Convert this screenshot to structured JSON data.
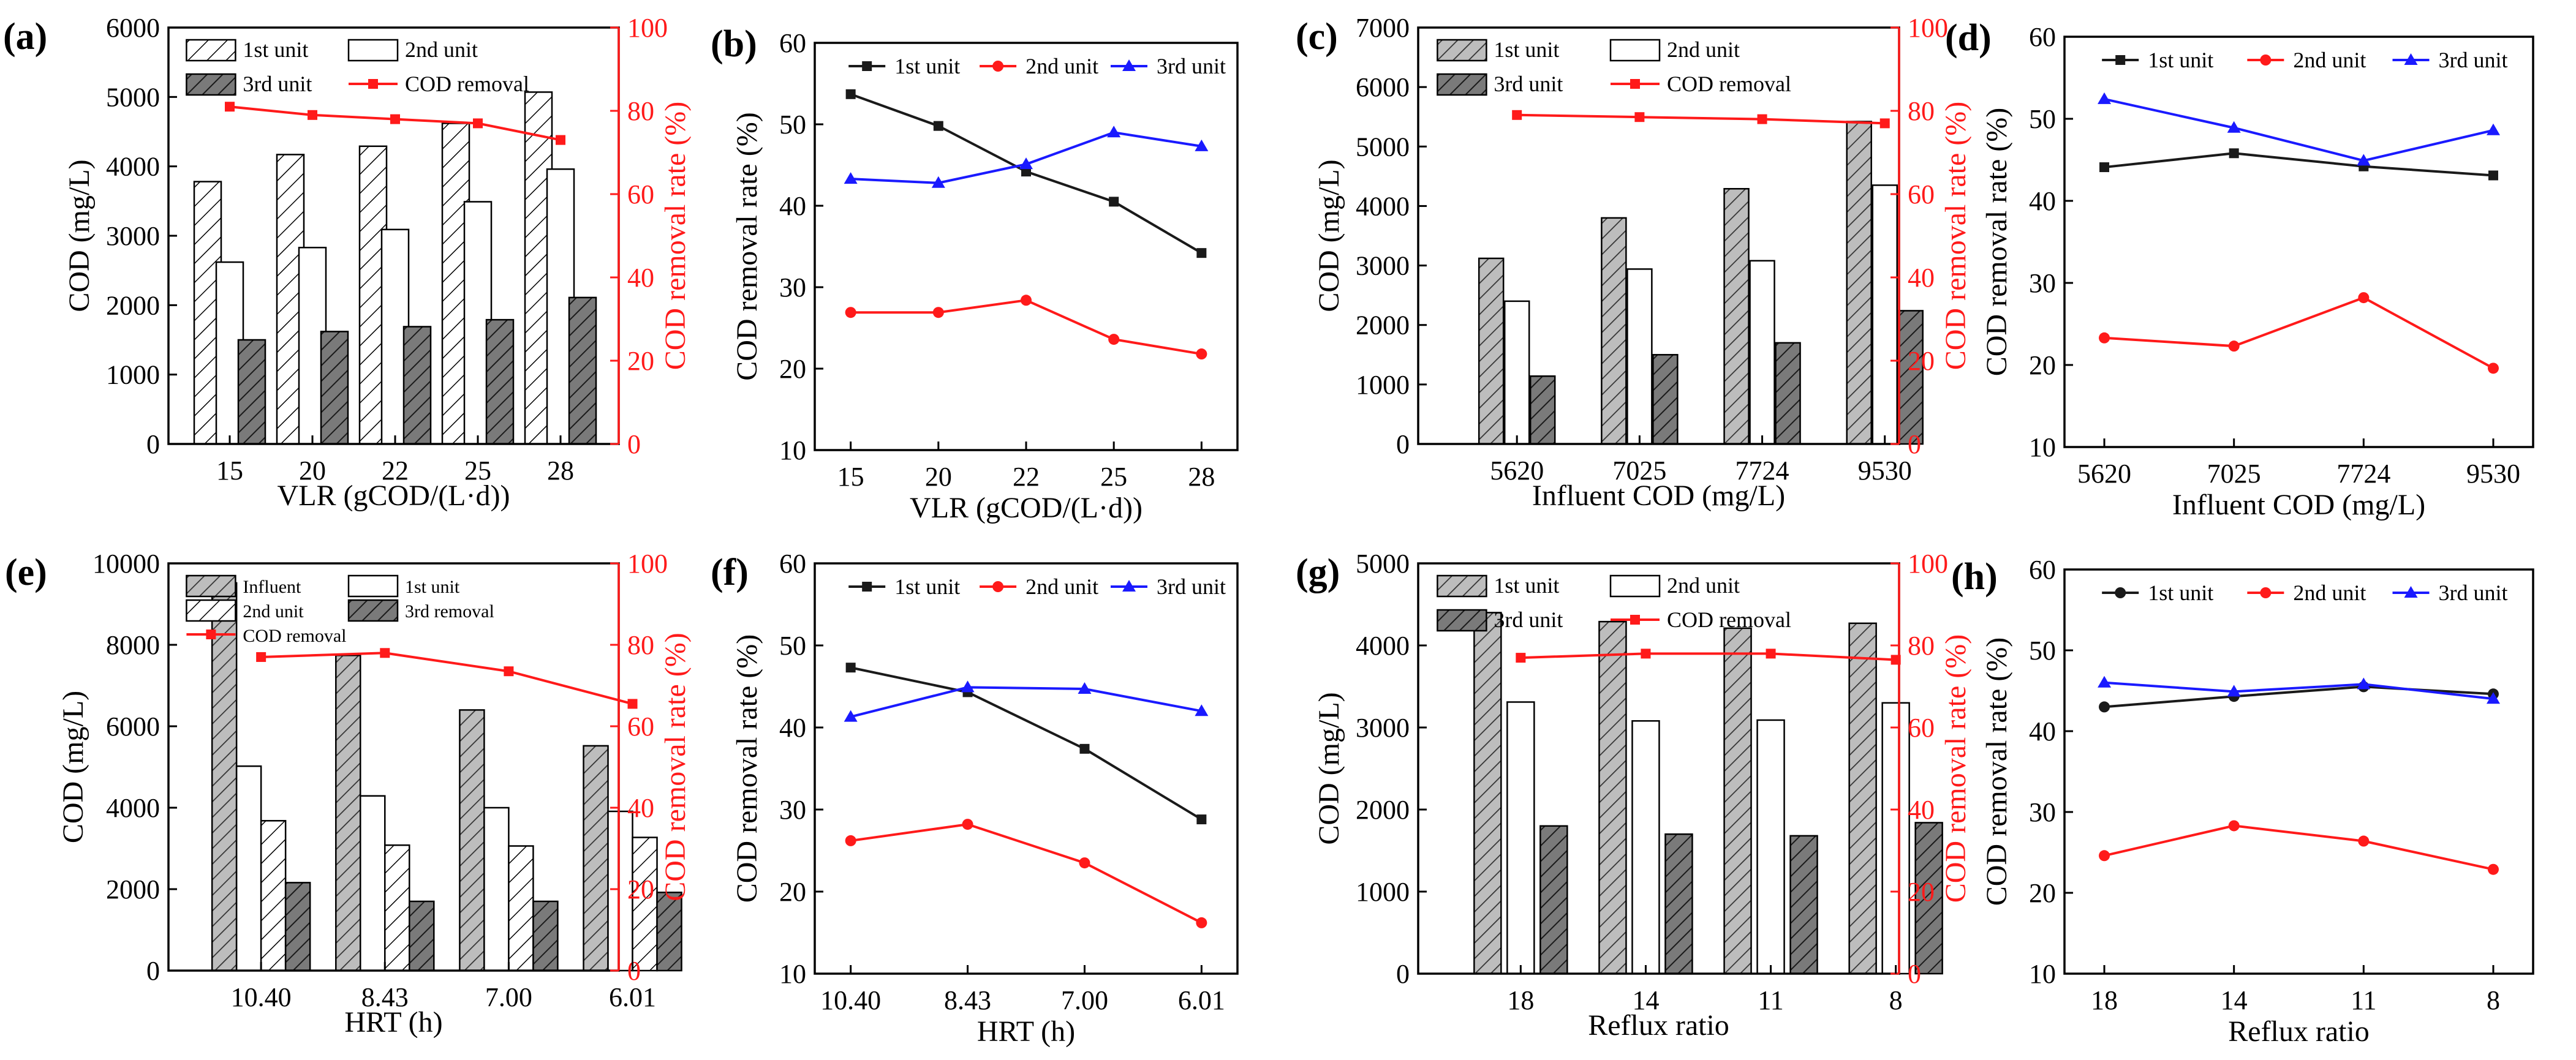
{
  "colors": {
    "black": "#1a1a1a",
    "red": "#ff1a1a",
    "blue": "#1a1aff"
  },
  "chart_data": [
    {
      "panel": "(a)",
      "type": "bar",
      "xlabel": "VLR (gCOD/(L·d))",
      "ylabel": "COD (mg/L)",
      "y2label": "COD removal rate (%)",
      "categories": [
        "15",
        "20",
        "22",
        "25",
        "28"
      ],
      "ylim": [
        0,
        6000
      ],
      "yticks": [
        0,
        1000,
        2000,
        3000,
        4000,
        5000,
        6000
      ],
      "y2lim": [
        0,
        100
      ],
      "y2ticks": [
        0,
        20,
        40,
        60,
        80,
        100
      ],
      "series": [
        {
          "name": "1st unit",
          "style": "hatch-light",
          "values": [
            3780,
            4170,
            4290,
            4620,
            5070
          ]
        },
        {
          "name": "2nd unit",
          "style": "white",
          "values": [
            2620,
            2830,
            3090,
            3490,
            3960
          ]
        },
        {
          "name": "3rd unit",
          "style": "hatch-dark",
          "values": [
            1500,
            1620,
            1690,
            1790,
            2110
          ]
        }
      ],
      "line": {
        "name": "COD removal",
        "values": [
          81,
          79,
          78,
          77,
          73
        ]
      },
      "legend": [
        "1st unit",
        "2nd unit",
        "3rd unit",
        "COD removal"
      ]
    },
    {
      "panel": "(b)",
      "type": "line",
      "xlabel": "VLR (gCOD/(L·d))",
      "ylabel": "COD removal rate (%)",
      "categories": [
        "15",
        "20",
        "22",
        "25",
        "28"
      ],
      "ylim": [
        10,
        60
      ],
      "yticks": [
        10,
        20,
        30,
        40,
        50,
        60
      ],
      "series": [
        {
          "name": "1st unit",
          "color": "black",
          "marker": "square",
          "values": [
            53.7,
            49.8,
            44.2,
            40.5,
            34.2
          ]
        },
        {
          "name": "2nd unit",
          "color": "red",
          "marker": "circle",
          "values": [
            26.9,
            26.9,
            28.4,
            23.6,
            21.8
          ]
        },
        {
          "name": "3rd unit",
          "color": "blue",
          "marker": "triangle",
          "values": [
            43.3,
            42.8,
            45.1,
            49.0,
            47.3
          ]
        }
      ]
    },
    {
      "panel": "(c)",
      "type": "bar",
      "xlabel": "Influent COD (mg/L)",
      "ylabel": "COD (mg/L)",
      "y2label": "COD removal rate (%)",
      "categories": [
        "5620",
        "7025",
        "7724",
        "9530"
      ],
      "ylim": [
        0,
        7000
      ],
      "yticks": [
        0,
        1000,
        2000,
        3000,
        4000,
        5000,
        6000,
        7000
      ],
      "y2lim": [
        0,
        100
      ],
      "y2ticks": [
        0,
        20,
        40,
        60,
        80,
        100
      ],
      "series": [
        {
          "name": "1st unit",
          "style": "hatch-dark",
          "values": [
            3120,
            3800,
            4290,
            5420
          ]
        },
        {
          "name": "2nd unit",
          "style": "white",
          "values": [
            2400,
            2940,
            3080,
            4350
          ]
        },
        {
          "name": "3rd unit",
          "style": "hatch-dark",
          "values": [
            1140,
            1500,
            1700,
            2240
          ]
        }
      ],
      "line": {
        "name": "COD removal",
        "values": [
          79,
          78.5,
          78,
          77
        ]
      },
      "legend": [
        "1st unit",
        "2nd unit",
        "3rd unit",
        "COD removal"
      ]
    },
    {
      "panel": "(d)",
      "type": "line",
      "xlabel": "Influent COD (mg/L)",
      "ylabel": "COD removal rate (%)",
      "categories": [
        "5620",
        "7025",
        "7724",
        "9530"
      ],
      "ylim": [
        10,
        60
      ],
      "yticks": [
        10,
        20,
        30,
        40,
        50,
        60
      ],
      "series": [
        {
          "name": "1st unit",
          "color": "black",
          "marker": "square",
          "values": [
            44.1,
            45.8,
            44.2,
            43.1
          ]
        },
        {
          "name": "2nd unit",
          "color": "red",
          "marker": "circle",
          "values": [
            23.3,
            22.3,
            28.2,
            19.6
          ]
        },
        {
          "name": "3rd unit",
          "color": "blue",
          "marker": "triangle",
          "values": [
            52.4,
            48.9,
            44.9,
            48.6
          ]
        }
      ]
    },
    {
      "panel": "(e)",
      "type": "bar",
      "xlabel": "HRT (h)",
      "ylabel": "COD (mg/L)",
      "y2label": "COD removal rate (%)",
      "categories": [
        "10.40",
        "8.43",
        "7.00",
        "6.01"
      ],
      "ylim": [
        0,
        10000
      ],
      "yticks": [
        0,
        2000,
        4000,
        6000,
        8000,
        10000
      ],
      "y2lim": [
        0,
        100
      ],
      "y2ticks": [
        0,
        20,
        40,
        60,
        80,
        100
      ],
      "series": [
        {
          "name": "Influent",
          "style": "hatch-dark",
          "values": [
            9520,
            7740,
            6400,
            5520
          ]
        },
        {
          "name": "1st unit",
          "style": "white",
          "values": [
            5020,
            4290,
            4000,
            3910
          ]
        },
        {
          "name": "2nd unit",
          "style": "hatch-light",
          "values": [
            3680,
            3080,
            3060,
            3270
          ]
        },
        {
          "name": "3rd removal",
          "style": "hatch-dark",
          "values": [
            2160,
            1700,
            1700,
            1920
          ]
        }
      ],
      "line": {
        "name": "COD removal",
        "values": [
          77,
          78,
          73.5,
          65.5
        ]
      },
      "legend": [
        "Influent",
        "1st unit",
        "2nd unit",
        "3rd removal",
        "COD removal"
      ]
    },
    {
      "panel": "(f)",
      "type": "line",
      "xlabel": "HRT (h)",
      "ylabel": "COD removal rate (%)",
      "categories": [
        "10.40",
        "8.43",
        "7.00",
        "6.01"
      ],
      "ylim": [
        10,
        60
      ],
      "yticks": [
        10,
        20,
        30,
        40,
        50,
        60
      ],
      "series": [
        {
          "name": "1st unit",
          "color": "black",
          "marker": "square",
          "values": [
            47.3,
            44.3,
            37.4,
            28.8
          ]
        },
        {
          "name": "2nd unit",
          "color": "red",
          "marker": "circle",
          "values": [
            26.2,
            28.2,
            23.5,
            16.2
          ]
        },
        {
          "name": "3rd unit",
          "color": "blue",
          "marker": "triangle",
          "values": [
            41.3,
            44.9,
            44.7,
            42.0
          ]
        }
      ]
    },
    {
      "panel": "(g)",
      "type": "bar",
      "xlabel": "Reflux ratio",
      "ylabel": "COD (mg/L)",
      "y2label": "COD removal rate (%)",
      "categories": [
        "18",
        "14",
        "11",
        "8"
      ],
      "ylim": [
        0,
        5000
      ],
      "yticks": [
        0,
        1000,
        2000,
        3000,
        4000,
        5000
      ],
      "y2lim": [
        0,
        100
      ],
      "y2ticks": [
        0,
        20,
        40,
        60,
        80,
        100
      ],
      "series": [
        {
          "name": "1st unit",
          "style": "hatch-dark",
          "values": [
            4400,
            4290,
            4210,
            4270
          ]
        },
        {
          "name": "2nd unit",
          "style": "white",
          "values": [
            3310,
            3080,
            3090,
            3300
          ]
        },
        {
          "name": "3rd unit",
          "style": "hatch-dark",
          "values": [
            1800,
            1700,
            1680,
            1840
          ]
        }
      ],
      "line": {
        "name": "COD removal",
        "values": [
          77,
          78,
          78,
          76.5
        ]
      },
      "legend": [
        "1st unit",
        "2nd unit",
        "3rd unit",
        "COD removal"
      ]
    },
    {
      "panel": "(h)",
      "type": "line",
      "xlabel": "Reflux ratio",
      "ylabel": "COD removal rate (%)",
      "categories": [
        "18",
        "14",
        "11",
        "8"
      ],
      "ylim": [
        10,
        60
      ],
      "yticks": [
        10,
        20,
        30,
        40,
        50,
        60
      ],
      "series": [
        {
          "name": "1st unit",
          "color": "black",
          "marker": "circle",
          "values": [
            43.0,
            44.3,
            45.5,
            44.6
          ]
        },
        {
          "name": "2nd unit",
          "color": "red",
          "marker": "circle",
          "values": [
            24.6,
            28.3,
            26.4,
            22.9
          ]
        },
        {
          "name": "3rd unit",
          "color": "blue",
          "marker": "triangle",
          "values": [
            46.0,
            44.9,
            45.8,
            44.0
          ]
        }
      ]
    }
  ]
}
